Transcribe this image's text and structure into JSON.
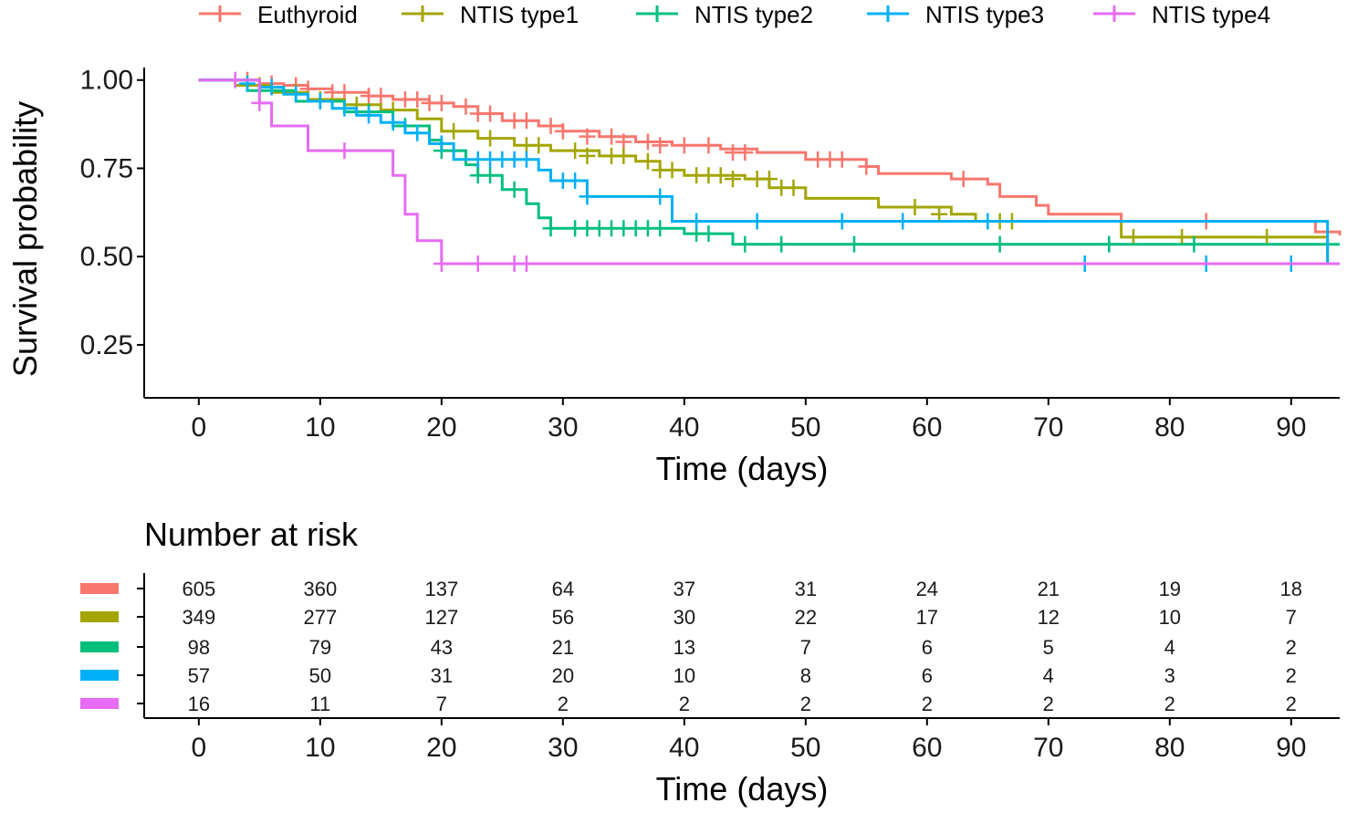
{
  "chart_data": {
    "type": "line",
    "subtype": "kaplan-meier",
    "legend": [
      {
        "name": "Euthyroid",
        "color": "#F8766D"
      },
      {
        "name": "NTIS type1",
        "color": "#A3A500"
      },
      {
        "name": "NTIS type2",
        "color": "#00BF7D"
      },
      {
        "name": "NTIS type3",
        "color": "#00B0F6"
      },
      {
        "name": "NTIS type4",
        "color": "#E76BF3"
      }
    ],
    "legend_position": "top",
    "ylabel": "Survival probability",
    "xlabel": "Time (days)",
    "xlim": [
      -4.5,
      94
    ],
    "ylim": [
      0.1,
      1.02
    ],
    "xticks": [
      "0",
      "10",
      "20",
      "30",
      "40",
      "50",
      "60",
      "70",
      "80",
      "90"
    ],
    "yticks": [
      "0.25",
      "0.50",
      "0.75",
      "1.00"
    ],
    "series": [
      {
        "name": "Euthyroid",
        "color": "#F8766D",
        "steps": [
          [
            0,
            1.0
          ],
          [
            5,
            0.99
          ],
          [
            7,
            0.985
          ],
          [
            9,
            0.975
          ],
          [
            11,
            0.965
          ],
          [
            14,
            0.955
          ],
          [
            16,
            0.945
          ],
          [
            19,
            0.935
          ],
          [
            21,
            0.925
          ],
          [
            23,
            0.905
          ],
          [
            25,
            0.885
          ],
          [
            28,
            0.87
          ],
          [
            30,
            0.855
          ],
          [
            33,
            0.84
          ],
          [
            36,
            0.825
          ],
          [
            39,
            0.815
          ],
          [
            43,
            0.805
          ],
          [
            46,
            0.795
          ],
          [
            50,
            0.775
          ],
          [
            55,
            0.755
          ],
          [
            56,
            0.735
          ],
          [
            62,
            0.72
          ],
          [
            65,
            0.705
          ],
          [
            66,
            0.67
          ],
          [
            69,
            0.645
          ],
          [
            70,
            0.62
          ],
          [
            76,
            0.6
          ],
          [
            92,
            0.57
          ],
          [
            94,
            0.56
          ]
        ],
        "censor": [
          [
            4,
            1.0
          ],
          [
            6,
            0.99
          ],
          [
            8,
            0.985
          ],
          [
            9,
            0.975
          ],
          [
            11,
            0.965
          ],
          [
            12,
            0.965
          ],
          [
            14,
            0.955
          ],
          [
            15,
            0.955
          ],
          [
            17,
            0.945
          ],
          [
            18,
            0.945
          ],
          [
            19,
            0.935
          ],
          [
            20,
            0.935
          ],
          [
            22,
            0.925
          ],
          [
            23,
            0.905
          ],
          [
            24,
            0.905
          ],
          [
            26,
            0.885
          ],
          [
            27,
            0.885
          ],
          [
            29,
            0.87
          ],
          [
            30,
            0.855
          ],
          [
            32,
            0.84
          ],
          [
            34,
            0.84
          ],
          [
            35,
            0.825
          ],
          [
            37,
            0.825
          ],
          [
            38,
            0.815
          ],
          [
            40,
            0.815
          ],
          [
            42,
            0.815
          ],
          [
            44,
            0.795
          ],
          [
            45,
            0.795
          ],
          [
            51,
            0.775
          ],
          [
            52,
            0.775
          ],
          [
            53,
            0.775
          ],
          [
            55,
            0.755
          ],
          [
            63,
            0.72
          ],
          [
            83,
            0.6
          ]
        ]
      },
      {
        "name": "NTIS type1",
        "color": "#A3A500",
        "steps": [
          [
            0,
            1.0
          ],
          [
            3,
            0.985
          ],
          [
            6,
            0.965
          ],
          [
            9,
            0.945
          ],
          [
            12,
            0.93
          ],
          [
            15,
            0.915
          ],
          [
            18,
            0.89
          ],
          [
            20,
            0.855
          ],
          [
            23,
            0.835
          ],
          [
            26,
            0.815
          ],
          [
            29,
            0.8
          ],
          [
            33,
            0.785
          ],
          [
            36,
            0.77
          ],
          [
            38,
            0.745
          ],
          [
            40,
            0.73
          ],
          [
            45,
            0.72
          ],
          [
            47,
            0.695
          ],
          [
            50,
            0.665
          ],
          [
            56,
            0.64
          ],
          [
            62,
            0.62
          ],
          [
            64,
            0.6
          ],
          [
            76,
            0.555
          ],
          [
            93,
            0.48
          ]
        ],
        "censor": [
          [
            5,
            0.985
          ],
          [
            8,
            0.965
          ],
          [
            10,
            0.945
          ],
          [
            13,
            0.93
          ],
          [
            16,
            0.915
          ],
          [
            21,
            0.855
          ],
          [
            24,
            0.835
          ],
          [
            27,
            0.815
          ],
          [
            28,
            0.815
          ],
          [
            31,
            0.8
          ],
          [
            32,
            0.785
          ],
          [
            34,
            0.785
          ],
          [
            35,
            0.785
          ],
          [
            37,
            0.77
          ],
          [
            38,
            0.745
          ],
          [
            39,
            0.745
          ],
          [
            41,
            0.73
          ],
          [
            42,
            0.73
          ],
          [
            43,
            0.73
          ],
          [
            44,
            0.72
          ],
          [
            46,
            0.72
          ],
          [
            47,
            0.72
          ],
          [
            48,
            0.695
          ],
          [
            49,
            0.695
          ],
          [
            59,
            0.64
          ],
          [
            61,
            0.62
          ],
          [
            66,
            0.6
          ],
          [
            67,
            0.6
          ],
          [
            77,
            0.555
          ],
          [
            81,
            0.555
          ],
          [
            88,
            0.555
          ]
        ]
      },
      {
        "name": "NTIS type2",
        "color": "#00BF7D",
        "steps": [
          [
            0,
            1.0
          ],
          [
            4,
            0.97
          ],
          [
            8,
            0.94
          ],
          [
            12,
            0.91
          ],
          [
            16,
            0.87
          ],
          [
            19,
            0.83
          ],
          [
            20,
            0.8
          ],
          [
            22,
            0.76
          ],
          [
            23,
            0.73
          ],
          [
            25,
            0.69
          ],
          [
            27,
            0.65
          ],
          [
            28,
            0.61
          ],
          [
            29,
            0.58
          ],
          [
            40,
            0.565
          ],
          [
            44,
            0.535
          ],
          [
            94,
            0.535
          ]
        ],
        "censor": [
          [
            5,
            0.97
          ],
          [
            10,
            0.94
          ],
          [
            14,
            0.91
          ],
          [
            17,
            0.87
          ],
          [
            20,
            0.8
          ],
          [
            23,
            0.73
          ],
          [
            24,
            0.73
          ],
          [
            26,
            0.69
          ],
          [
            29,
            0.58
          ],
          [
            31,
            0.58
          ],
          [
            32,
            0.58
          ],
          [
            33,
            0.58
          ],
          [
            34,
            0.58
          ],
          [
            35,
            0.58
          ],
          [
            36,
            0.58
          ],
          [
            37,
            0.58
          ],
          [
            38,
            0.58
          ],
          [
            41,
            0.565
          ],
          [
            42,
            0.565
          ],
          [
            45,
            0.535
          ],
          [
            48,
            0.535
          ],
          [
            54,
            0.535
          ],
          [
            66,
            0.535
          ],
          [
            75,
            0.535
          ],
          [
            82,
            0.535
          ]
        ]
      },
      {
        "name": "NTIS type3",
        "color": "#00B0F6",
        "steps": [
          [
            0,
            1.0
          ],
          [
            5,
            0.98
          ],
          [
            7,
            0.96
          ],
          [
            9,
            0.94
          ],
          [
            11,
            0.92
          ],
          [
            13,
            0.9
          ],
          [
            15,
            0.88
          ],
          [
            17,
            0.85
          ],
          [
            19,
            0.82
          ],
          [
            21,
            0.775
          ],
          [
            28,
            0.745
          ],
          [
            29,
            0.715
          ],
          [
            32,
            0.67
          ],
          [
            39,
            0.6
          ],
          [
            93,
            0.48
          ],
          [
            94,
            0.48
          ]
        ],
        "censor": [
          [
            4,
            0.99
          ],
          [
            6,
            0.98
          ],
          [
            8,
            0.96
          ],
          [
            10,
            0.94
          ],
          [
            12,
            0.92
          ],
          [
            14,
            0.9
          ],
          [
            16,
            0.88
          ],
          [
            18,
            0.85
          ],
          [
            20,
            0.82
          ],
          [
            23,
            0.775
          ],
          [
            24,
            0.775
          ],
          [
            25,
            0.775
          ],
          [
            26,
            0.775
          ],
          [
            27,
            0.775
          ],
          [
            30,
            0.715
          ],
          [
            31,
            0.715
          ],
          [
            32,
            0.67
          ],
          [
            38,
            0.67
          ],
          [
            41,
            0.6
          ],
          [
            46,
            0.6
          ],
          [
            53,
            0.6
          ],
          [
            58,
            0.6
          ],
          [
            65,
            0.6
          ],
          [
            73,
            0.48
          ],
          [
            83,
            0.48
          ],
          [
            90,
            0.48
          ]
        ]
      },
      {
        "name": "NTIS type4",
        "color": "#E76BF3",
        "steps": [
          [
            0,
            1.0
          ],
          [
            5,
            0.935
          ],
          [
            6,
            0.87
          ],
          [
            9,
            0.8
          ],
          [
            16,
            0.73
          ],
          [
            17,
            0.62
          ],
          [
            18,
            0.545
          ],
          [
            20,
            0.48
          ],
          [
            94,
            0.48
          ]
        ],
        "censor": [
          [
            3,
            1.0
          ],
          [
            5,
            0.935
          ],
          [
            12,
            0.8
          ],
          [
            20,
            0.48
          ],
          [
            23,
            0.48
          ],
          [
            26,
            0.48
          ],
          [
            27,
            0.48
          ]
        ]
      }
    ],
    "risk_table": {
      "title": "Number at risk",
      "xlabel": "Time (days)",
      "times": [
        "0",
        "10",
        "20",
        "30",
        "40",
        "50",
        "60",
        "70",
        "80",
        "90"
      ],
      "rows": [
        {
          "name": "Euthyroid",
          "color": "#F8766D",
          "counts": [
            "605",
            "360",
            "137",
            "64",
            "37",
            "31",
            "24",
            "21",
            "19",
            "18"
          ]
        },
        {
          "name": "NTIS type1",
          "color": "#A3A500",
          "counts": [
            "349",
            "277",
            "127",
            "56",
            "30",
            "22",
            "17",
            "12",
            "10",
            "7"
          ]
        },
        {
          "name": "NTIS type2",
          "color": "#00BF7D",
          "counts": [
            "98",
            "79",
            "43",
            "21",
            "13",
            "7",
            "6",
            "5",
            "4",
            "2"
          ]
        },
        {
          "name": "NTIS type3",
          "color": "#00B0F6",
          "counts": [
            "57",
            "50",
            "31",
            "20",
            "10",
            "8",
            "6",
            "4",
            "3",
            "2"
          ]
        },
        {
          "name": "NTIS type4",
          "color": "#E76BF3",
          "counts": [
            "16",
            "11",
            "7",
            "2",
            "2",
            "2",
            "2",
            "2",
            "2",
            "2"
          ]
        }
      ]
    }
  }
}
